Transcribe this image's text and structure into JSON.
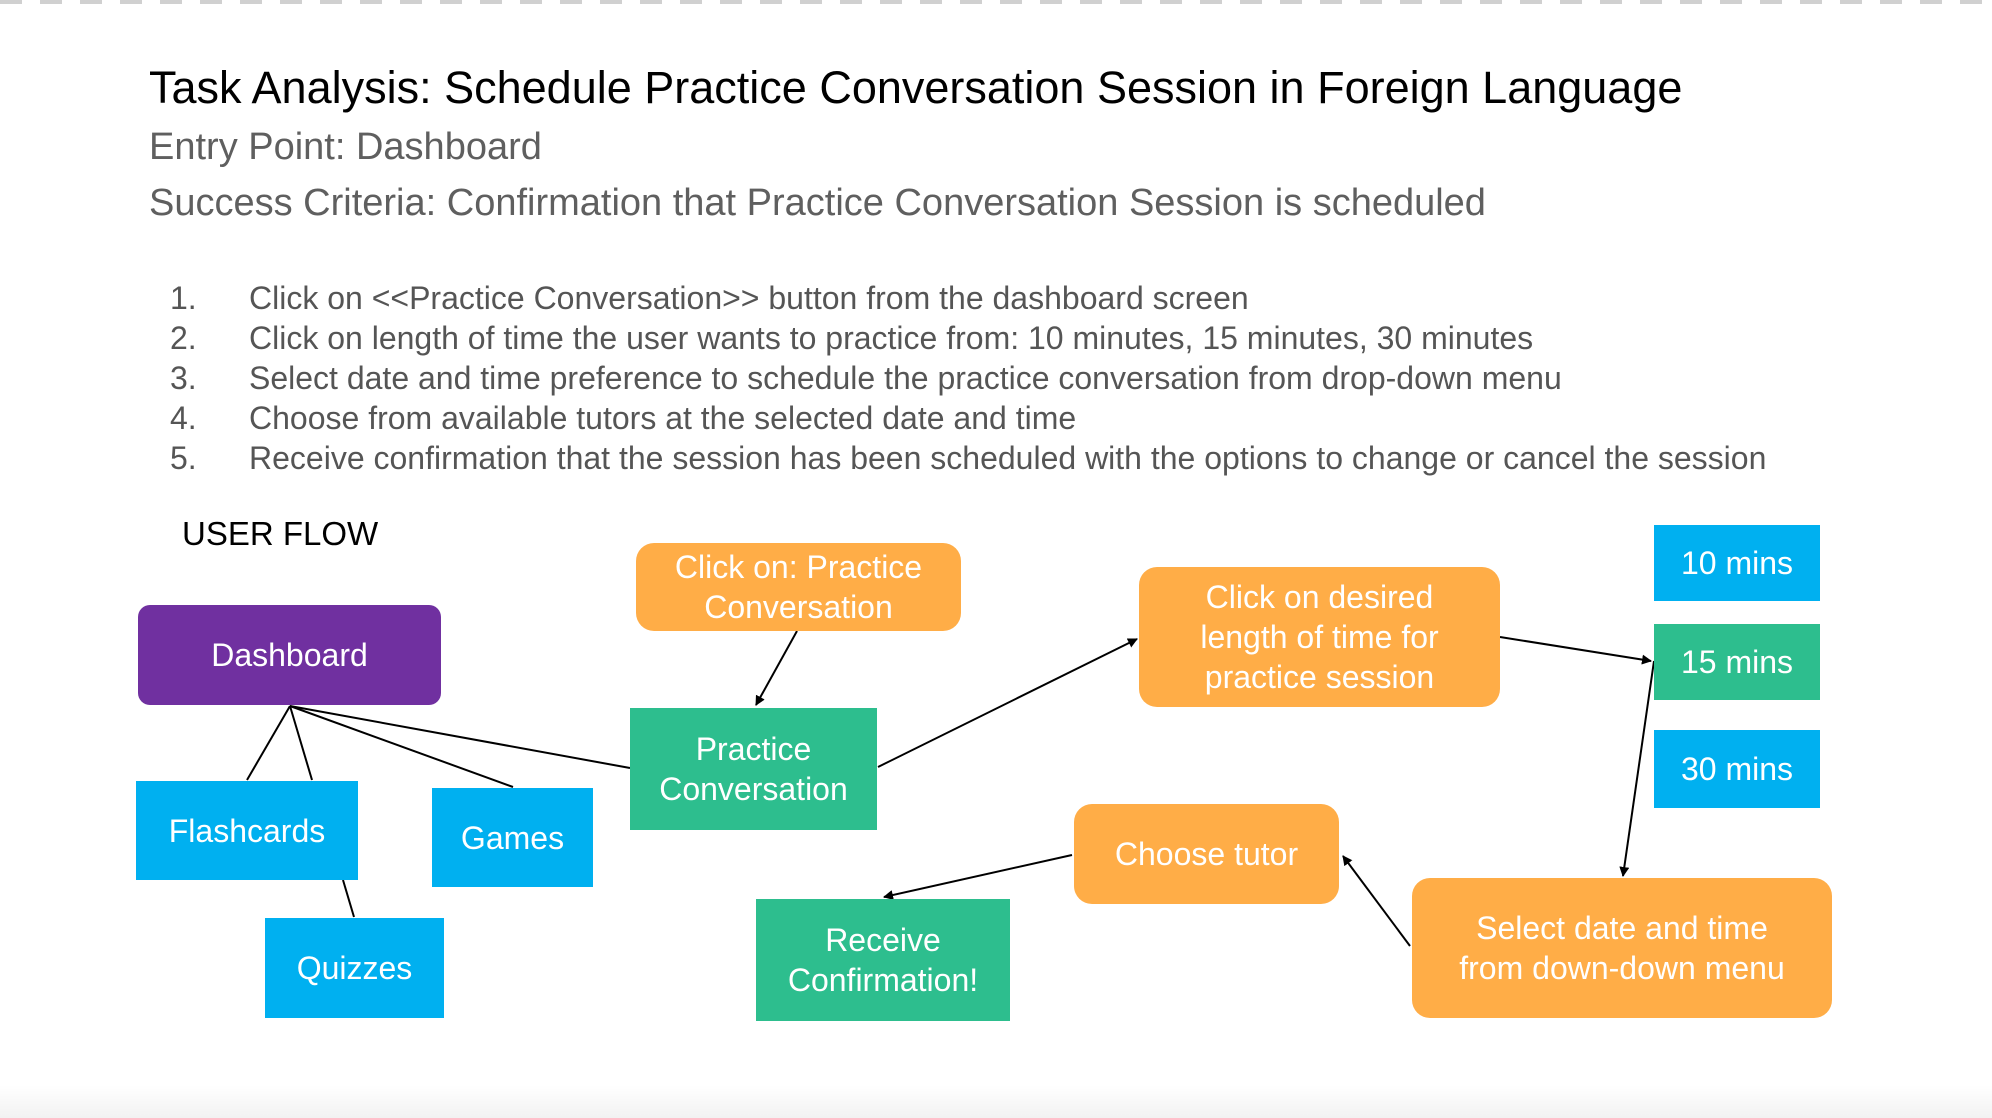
{
  "title": "Task Analysis: Schedule Practice Conversation Session in Foreign Language",
  "entry_point": "Entry Point: Dashboard",
  "success_criteria": "Success Criteria: Confirmation that Practice Conversation Session is scheduled",
  "steps": [
    {
      "num": "1.",
      "text": "Click on <<Practice Conversation>> button from the dashboard screen"
    },
    {
      "num": "2.",
      "text": "Click on length of time the user wants to practice from: 10 minutes, 15 minutes, 30 minutes"
    },
    {
      "num": "3.",
      "text": "Select date and time preference to schedule the practice conversation from drop-down menu"
    },
    {
      "num": "4.",
      "text": "Choose from available tutors at the selected date and time"
    },
    {
      "num": "5.",
      "text": "Receive confirmation that the session has been scheduled with the options to change or cancel the session"
    }
  ],
  "flow_label": "USER FLOW",
  "nodes": {
    "dashboard": "Dashboard",
    "flashcards": "Flashcards",
    "games": "Games",
    "quizzes": "Quizzes",
    "click_practice_line1": "Click on: Practice",
    "click_practice_line2": "Conversation",
    "practice_line1": "Practice",
    "practice_line2": "Conversation",
    "desired_line1": "Click on desired",
    "desired_line2": "length of time for",
    "desired_line3": "practice session",
    "ten": "10 mins",
    "fifteen": "15 mins",
    "thirty": "30 mins",
    "choose_tutor": "Choose tutor",
    "select_line1": "Select date and time",
    "select_line2": "from down-down menu",
    "receive_line1": "Receive",
    "receive_line2": "Confirmation!"
  },
  "colors": {
    "dashboard": "#7030a0",
    "section": "#00b0f0",
    "screen": "#2dbe8e",
    "action": "#ffad47"
  }
}
